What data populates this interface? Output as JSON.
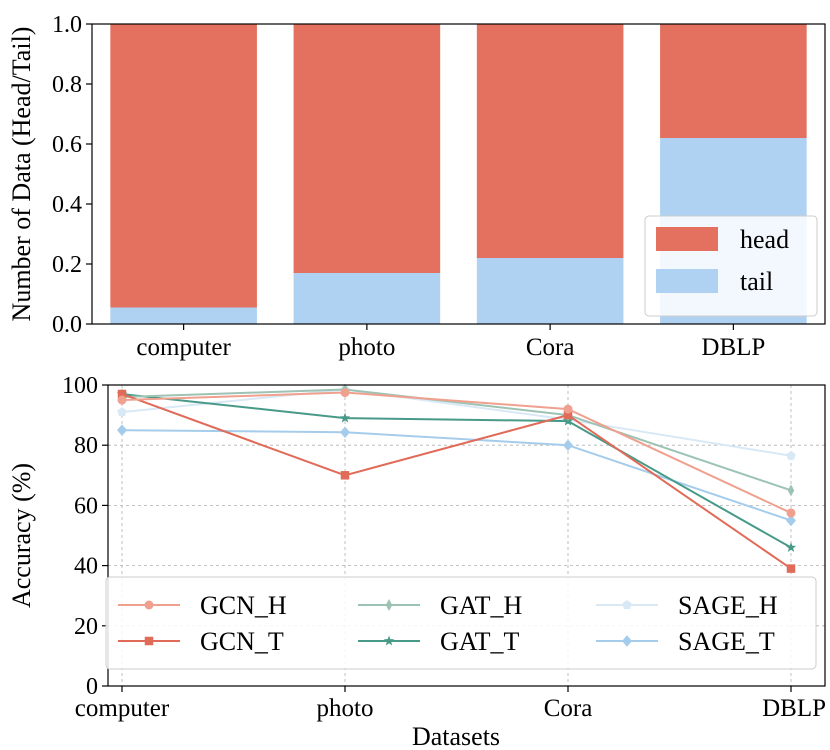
{
  "chart_data": [
    {
      "type": "bar",
      "stacked": true,
      "categories": [
        "computer",
        "photo",
        "Cora",
        "DBLP"
      ],
      "series": [
        {
          "name": "head",
          "values": [
            0.945,
            0.83,
            0.78,
            0.38
          ],
          "color": "#E47160"
        },
        {
          "name": "tail",
          "values": [
            0.055,
            0.17,
            0.22,
            0.62
          ],
          "color": "#AFD2F3"
        }
      ],
      "title": "",
      "xlabel": "",
      "ylabel": "Number of Data (Head/Tail)",
      "ylim": [
        0,
        1.0
      ],
      "yticks": [
        "0.0",
        "0.2",
        "0.4",
        "0.6",
        "0.8",
        "1.0"
      ],
      "legend": "lower-right",
      "grid": false
    },
    {
      "type": "line",
      "categories": [
        "computer",
        "photo",
        "Cora",
        "DBLP"
      ],
      "series": [
        {
          "name": "GCN_H",
          "values": [
            95,
            97.5,
            92,
            57.5
          ],
          "color": "#F0A08E",
          "marker": "circle"
        },
        {
          "name": "GCN_T",
          "values": [
            97,
            70,
            90,
            39
          ],
          "color": "#E06B58",
          "marker": "square"
        },
        {
          "name": "GAT_H",
          "values": [
            96,
            98.5,
            90,
            65
          ],
          "color": "#9DC3B4",
          "marker": "thin-diamond"
        },
        {
          "name": "GAT_T",
          "values": [
            97,
            89,
            88,
            46
          ],
          "color": "#489A88",
          "marker": "star"
        },
        {
          "name": "SAGE_H",
          "values": [
            91,
            98.5,
            88.5,
            76.5
          ],
          "color": "#D9E8F5",
          "marker": "pentagon"
        },
        {
          "name": "SAGE_T",
          "values": [
            85,
            84.3,
            80,
            55
          ],
          "color": "#A5CCEB",
          "marker": "diamond"
        }
      ],
      "title": "",
      "xlabel": "Datasets",
      "ylabel": "Accuracy (%)",
      "ylim": [
        0,
        100
      ],
      "yticks": [
        "0",
        "20",
        "40",
        "60",
        "80",
        "100"
      ],
      "legend": "lower-left",
      "legend_columns": 3,
      "grid": true
    }
  ]
}
